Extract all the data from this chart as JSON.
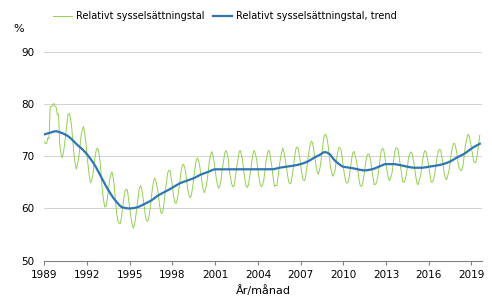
{
  "ylabel": "%",
  "xlabel": "År/månad",
  "legend_line1": "Relativt sysselsättningstal",
  "legend_line2": "Relativt sysselsättningstal, trend",
  "ylim": [
    50,
    93
  ],
  "yticks": [
    50,
    60,
    70,
    80,
    90
  ],
  "xticks": [
    1989,
    1992,
    1995,
    1998,
    2001,
    2004,
    2007,
    2010,
    2013,
    2016,
    2019
  ],
  "line_color": "#2E75B6",
  "seasonal_color": "#92D050",
  "background_color": "#ffffff",
  "grid_color": "#BFBFBF"
}
